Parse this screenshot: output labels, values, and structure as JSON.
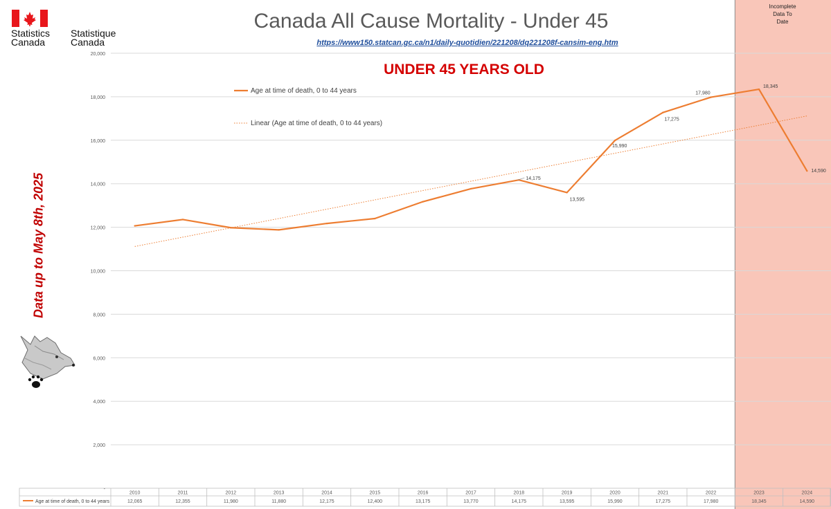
{
  "header": {
    "logo_en": "Statistics\nCanada",
    "logo_fr": "Statistique\nCanada",
    "title": "Canada All Cause Mortality - Under 45",
    "url": "https://www150.statcan.gc.ca/n1/daily-quotidien/221208/dq221208f-cansim-eng.htm",
    "subtitle": "UNDER 45 YEARS OLD"
  },
  "side_note": "Data up to May 8th, 2025",
  "incomplete_label": "Incomplete\nData To\nDate",
  "colors": {
    "series": "#ed7d31",
    "trend": "#f4b183",
    "shade": "#f8b8a8",
    "grid": "#d9d9d9",
    "flag_red": "#e8161b"
  },
  "chart_data": {
    "type": "line",
    "categories": [
      "2010",
      "2011",
      "2012",
      "2013",
      "2014",
      "2015",
      "2016",
      "2017",
      "2018",
      "2019",
      "2020",
      "2021",
      "2022",
      "2023",
      "2024"
    ],
    "series": [
      {
        "name": "Age at time of death, 0 to 44 years",
        "values": [
          12065,
          12355,
          11980,
          11880,
          12175,
          12400,
          13175,
          13770,
          14175,
          13595,
          15990,
          17275,
          17980,
          18345,
          14590
        ]
      }
    ],
    "point_labels": {
      "2018": "14,175",
      "2019": "13,595",
      "2020": "15,990",
      "2021": "17,275",
      "2022": "17,980",
      "2023": "18,345",
      "2024": "14,590"
    },
    "table_values": [
      "12,065",
      "12,355",
      "11,980",
      "11,880",
      "12,175",
      "12,400",
      "13,175",
      "13,770",
      "14,175",
      "13,595",
      "15,990",
      "17,275",
      "17,980",
      "18,345",
      "14,590"
    ],
    "trendline": {
      "name": "Linear (Age at time of death, 0 to 44 years)",
      "type": "linear"
    },
    "ylim": [
      0,
      20000
    ],
    "y_ticks": [
      0,
      2000,
      4000,
      6000,
      8000,
      10000,
      12000,
      14000,
      16000,
      18000,
      20000
    ],
    "y_tick_labels": [
      "-",
      "2,000",
      "4,000",
      "6,000",
      "8,000",
      "10,000",
      "12,000",
      "14,000",
      "16,000",
      "18,000",
      "20,000"
    ],
    "shaded_categories": [
      "2023",
      "2024"
    ],
    "grid": true,
    "legend_position": "top-left, inside plot"
  }
}
